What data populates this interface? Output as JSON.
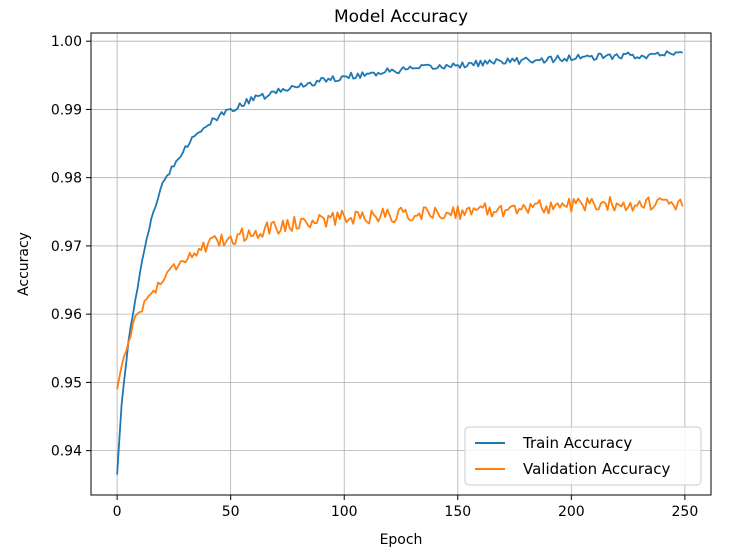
{
  "chart_data": {
    "type": "line",
    "title": "Model Accuracy",
    "xlabel": "Epoch",
    "ylabel": "Accuracy",
    "xlim": [
      -11.5,
      261.5
    ],
    "ylim": [
      0.9335,
      1.0012
    ],
    "xticks": [
      0,
      50,
      100,
      150,
      200,
      250
    ],
    "xtick_labels": [
      "0",
      "50",
      "100",
      "150",
      "200",
      "250"
    ],
    "yticks": [
      0.94,
      0.95,
      0.96,
      0.97,
      0.98,
      0.99,
      1.0
    ],
    "ytick_labels": [
      "0.94",
      "0.95",
      "0.96",
      "0.97",
      "0.98",
      "0.99",
      "1.00"
    ],
    "grid": true,
    "legend": "lower-right",
    "series": [
      {
        "name": "Train Accuracy",
        "color": "#1f77b4",
        "anchor_epochs": [
          0,
          2,
          5,
          8,
          10,
          15,
          20,
          25,
          30,
          35,
          40,
          50,
          60,
          70,
          80,
          90,
          100,
          120,
          140,
          160,
          180,
          200,
          220,
          240,
          249
        ],
        "anchor_values": [
          0.9365,
          0.947,
          0.956,
          0.962,
          0.966,
          0.974,
          0.979,
          0.982,
          0.9845,
          0.9865,
          0.9878,
          0.99,
          0.9915,
          0.9925,
          0.9935,
          0.9942,
          0.9948,
          0.9956,
          0.9962,
          0.9968,
          0.9972,
          0.9975,
          0.9978,
          0.998,
          0.9983
        ],
        "noise": 0.0005
      },
      {
        "name": "Validation Accuracy",
        "color": "#ff7f0e",
        "anchor_epochs": [
          0,
          2,
          5,
          8,
          10,
          15,
          20,
          25,
          30,
          40,
          50,
          60,
          70,
          80,
          90,
          100,
          120,
          140,
          160,
          180,
          200,
          220,
          240,
          249
        ],
        "anchor_values": [
          0.949,
          0.9525,
          0.956,
          0.9595,
          0.9605,
          0.963,
          0.965,
          0.967,
          0.9683,
          0.97,
          0.9712,
          0.972,
          0.9728,
          0.9734,
          0.9738,
          0.9742,
          0.9745,
          0.9748,
          0.9752,
          0.9756,
          0.976,
          0.9762,
          0.9762,
          0.9758
        ],
        "noise": 0.0011
      }
    ]
  }
}
